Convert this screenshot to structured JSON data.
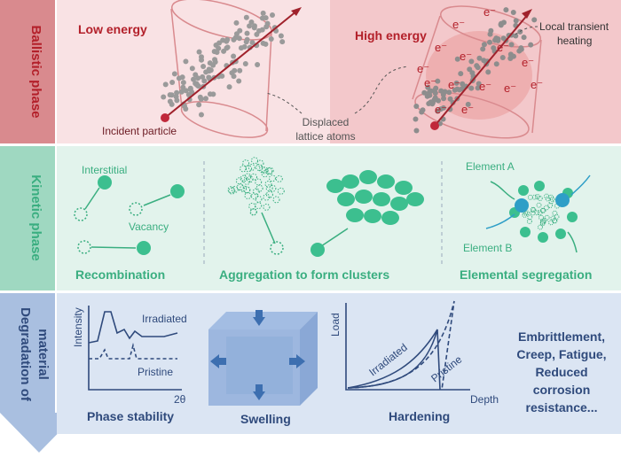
{
  "ballistic": {
    "label": "Ballistic phase",
    "low_energy": "Low energy",
    "high_energy": "High energy",
    "heating": [
      "Local transient",
      "heating"
    ],
    "incident": "Incident particle",
    "displaced": [
      "Displaced",
      "lattice atoms"
    ],
    "electron": "e⁻"
  },
  "kinetic": {
    "label": "Kinetic phase",
    "interstitial": "Interstitial",
    "vacancy": "Vacancy",
    "recombination": "Recombination",
    "aggregation": "Aggregation to form clusters",
    "element_a": "Element A",
    "element_b": "Element B",
    "segregation": "Elemental segregation"
  },
  "degradation": {
    "label": [
      "Degradation of",
      "material"
    ],
    "phase": {
      "y_label": "Intensity",
      "x_label": "2θ",
      "irradiated": "Irradiated",
      "pristine": "Pristine",
      "title": "Phase stability"
    },
    "swelling": "Swelling",
    "hardening": {
      "y_label": "Load",
      "x_label": "Depth",
      "irradiated": "Irradiated",
      "pristine": "Pristine",
      "title": "Hardening"
    },
    "effects": [
      "Embrittlement,",
      "Creep, Fatigue,",
      "Reduced",
      "corrosion",
      "resistance..."
    ]
  }
}
